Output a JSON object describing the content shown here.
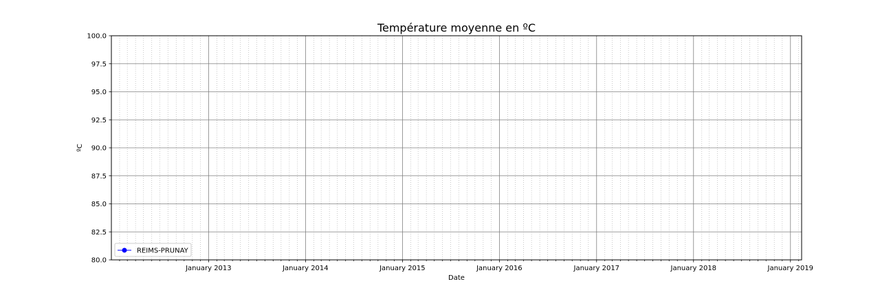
{
  "chart_data": {
    "type": "line",
    "title": "Température moyenne en ºC",
    "xlabel": "Date",
    "ylabel": "ºC",
    "x_axis": {
      "scale": "date",
      "range": [
        "2012-01-01",
        "2019-02-12"
      ],
      "major_ticks": [
        {
          "date": "2013-01-01",
          "label": "January 2013"
        },
        {
          "date": "2014-01-01",
          "label": "January 2014"
        },
        {
          "date": "2015-01-01",
          "label": "January 2015"
        },
        {
          "date": "2016-01-01",
          "label": "January 2016"
        },
        {
          "date": "2017-01-01",
          "label": "January 2017"
        },
        {
          "date": "2018-01-01",
          "label": "January 2018"
        },
        {
          "date": "2019-01-01",
          "label": "January 2019"
        }
      ],
      "minor_ticks": "monthly"
    },
    "ylim": [
      80.0,
      100.0
    ],
    "yticks": [
      "80.0",
      "82.5",
      "85.0",
      "87.5",
      "90.0",
      "92.5",
      "95.0",
      "97.5",
      "100.0"
    ],
    "grid": {
      "major": "solid",
      "minor": "dotted"
    },
    "legend": {
      "placement": "lower-left"
    },
    "series": [
      {
        "name": "REIMS-PRUNAY",
        "color": "#0000ff",
        "marker": "circle",
        "points": []
      }
    ]
  }
}
